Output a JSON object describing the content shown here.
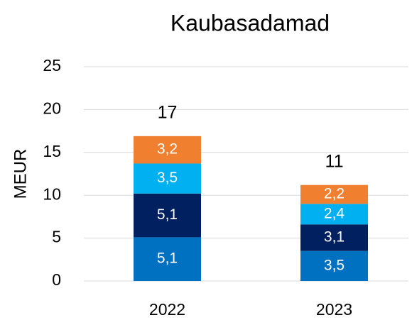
{
  "chart_data": {
    "type": "bar",
    "stacked": true,
    "title": "Kaubasadamad",
    "y_label": "MEUR",
    "categories": [
      "2022",
      "2023"
    ],
    "series": [
      {
        "color": "#0070c0",
        "values": [
          5.1,
          3.5
        ],
        "value_labels": [
          "5,1",
          "3,5"
        ]
      },
      {
        "color": "#002060",
        "values": [
          5.1,
          3.1
        ],
        "value_labels": [
          "5,1",
          "3,1"
        ]
      },
      {
        "color": "#00b0f0",
        "values": [
          3.5,
          2.4
        ],
        "value_labels": [
          "3,5",
          "2,4"
        ]
      },
      {
        "color": "#f08030",
        "values": [
          3.2,
          2.2
        ],
        "value_labels": [
          "3,2",
          "2,2"
        ]
      }
    ],
    "totals": [
      17,
      11
    ],
    "ylim": [
      0,
      25
    ],
    "yticks": [
      0,
      5,
      10,
      15,
      20,
      25
    ],
    "grid": true
  }
}
